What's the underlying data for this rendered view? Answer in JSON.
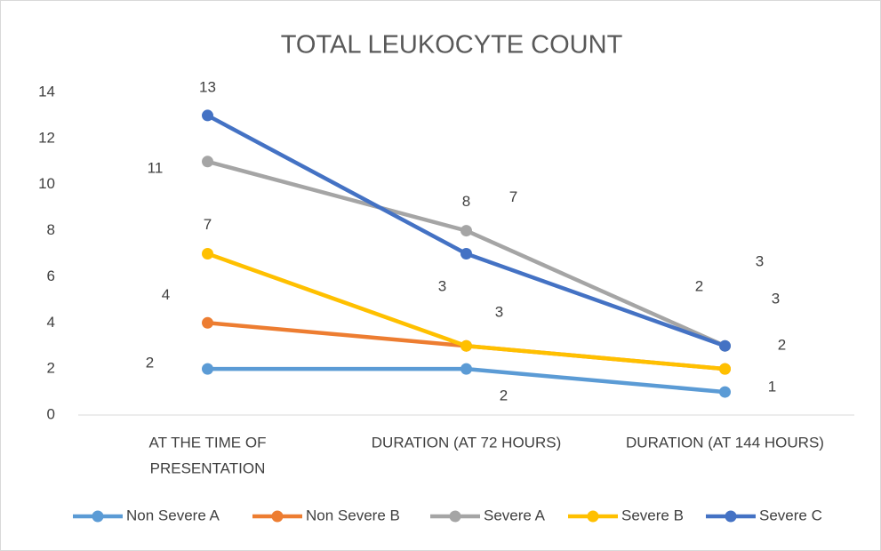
{
  "chart_data": {
    "type": "line",
    "title": "TOTAL LEUKOCYTE COUNT",
    "categories": [
      [
        "AT THE TIME OF",
        "PRESENTATION"
      ],
      [
        "DURATION (AT 72 HOURS)"
      ],
      [
        "DURATION (AT 144 HOURS)"
      ]
    ],
    "series": [
      {
        "name": "Non Severe A",
        "color": "#5b9bd5",
        "values": [
          2,
          2,
          1
        ]
      },
      {
        "name": "Non Severe B",
        "color": "#ed7d31",
        "values": [
          4,
          3,
          2
        ]
      },
      {
        "name": "Severe A",
        "color": "#a5a5a5",
        "values": [
          11,
          8,
          3
        ]
      },
      {
        "name": "Severe B",
        "color": "#ffc000",
        "values": [
          7,
          3,
          2
        ]
      },
      {
        "name": "Severe C",
        "color": "#4472c4",
        "values": [
          13,
          7,
          3
        ]
      }
    ],
    "ylim": [
      0,
      14
    ],
    "yticks": [
      0,
      2,
      4,
      6,
      8,
      10,
      12,
      14
    ],
    "grid": false,
    "legend": "bottom"
  }
}
